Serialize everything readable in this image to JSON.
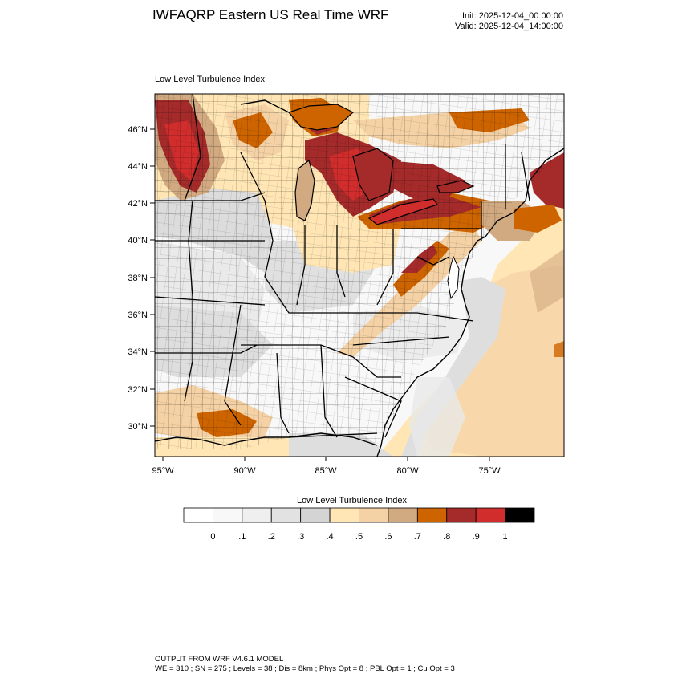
{
  "header": {
    "title": "IWFAQRP Eastern US Real Time WRF",
    "init": "Init: 2025-12-04_00:00:00",
    "valid": "Valid: 2025-12-04_14:00:00"
  },
  "map": {
    "field_label": "Low Level Turbulence Index",
    "lat_ticks": [
      "46°N",
      "44°N",
      "42°N",
      "40°N",
      "38°N",
      "36°N",
      "34°N",
      "32°N",
      "30°N"
    ],
    "lon_ticks": [
      "95°W",
      "90°W",
      "85°W",
      "80°W",
      "75°W"
    ]
  },
  "colorbar": {
    "title": "Low Level Turbulence Index",
    "colors": [
      "#ffffff",
      "#f8f8f8",
      "#efefef",
      "#e2e2e2",
      "#d4d4d4",
      "#ffe6b4",
      "#f5d2a5",
      "#d2aa82",
      "#cd6400",
      "#a52a2a",
      "#d22d2d",
      "#000000"
    ],
    "labels": [
      "0",
      ".1",
      ".2",
      ".3",
      ".4",
      ".5",
      ".6",
      ".7",
      ".8",
      ".9",
      "1"
    ]
  },
  "footer": {
    "line1": "OUTPUT FROM WRF V4.6.1 MODEL",
    "line2": "WE = 310 ; SN = 275 ; Levels = 38 ; Dis = 8km ; Phys Opt = 8 ; PBL Opt = 1 ; Cu Opt = 3"
  }
}
